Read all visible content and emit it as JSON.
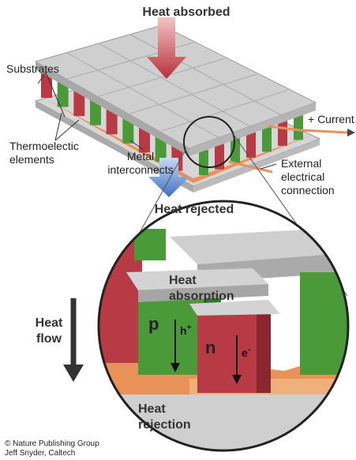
{
  "title": "Heat absorbed",
  "labels": {
    "substrates": [
      "Substrates"
    ],
    "current": [
      "+ Current"
    ],
    "thermoelectric": [
      "Thermoelectic",
      "elements"
    ],
    "metal": [
      "Metal",
      "interconnects"
    ],
    "external": [
      "External",
      "electrical",
      "connection"
    ],
    "heat_rejected": [
      "Heat rejected"
    ],
    "heat_flow": [
      "Heat",
      "flow"
    ],
    "heat_absorption": [
      "Heat",
      "absorption"
    ],
    "heat_rejection": [
      "Heat",
      "rejection"
    ]
  },
  "detail": {
    "p_type": "p",
    "n_type": "n",
    "hole": {
      "base": "h",
      "sup": "+"
    },
    "electron": {
      "base": "e",
      "sup": "-"
    }
  },
  "credits": [
    "© Nature Publishing Group",
    "Jeff Snyder, Caltech"
  ]
}
